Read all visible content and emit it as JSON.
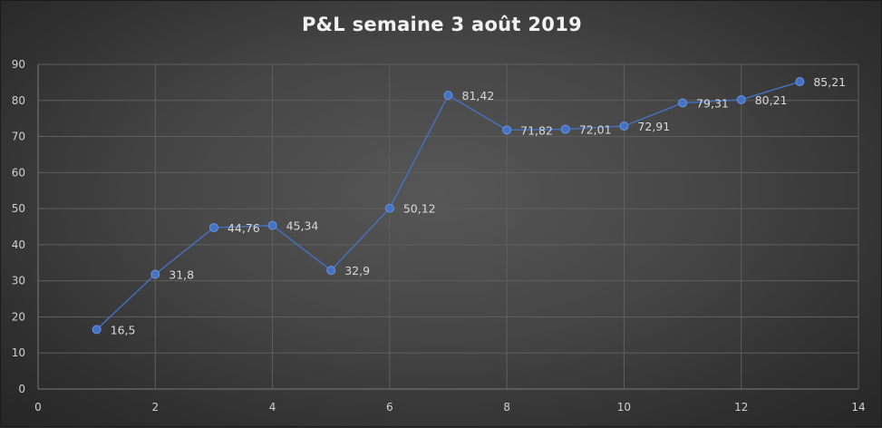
{
  "chart_data": {
    "type": "scatter",
    "title": "P&L semaine 3 août 2019",
    "xlabel": "",
    "ylabel": "",
    "xlim": [
      0,
      14
    ],
    "ylim": [
      0,
      90
    ],
    "x_ticks": [
      0,
      2,
      4,
      6,
      8,
      10,
      12,
      14
    ],
    "y_ticks": [
      0,
      10,
      20,
      30,
      40,
      50,
      60,
      70,
      80,
      90
    ],
    "grid": true,
    "legend": "none",
    "series_color": "#4472c4",
    "series": [
      {
        "x": [
          1,
          2,
          3,
          4,
          5,
          6,
          7,
          8,
          9,
          10,
          11,
          12,
          13
        ],
        "y": [
          16.5,
          31.8,
          44.76,
          45.34,
          32.9,
          50.12,
          81.42,
          71.82,
          72.01,
          72.91,
          79.31,
          80.21,
          85.21
        ],
        "labels": [
          "16,5",
          "31,8",
          "44,76",
          "45,34",
          "32,9",
          "50,12",
          "81,42",
          "71,82",
          "72,01",
          "72,91",
          "79,31",
          "80,21",
          "85,21"
        ]
      }
    ]
  }
}
